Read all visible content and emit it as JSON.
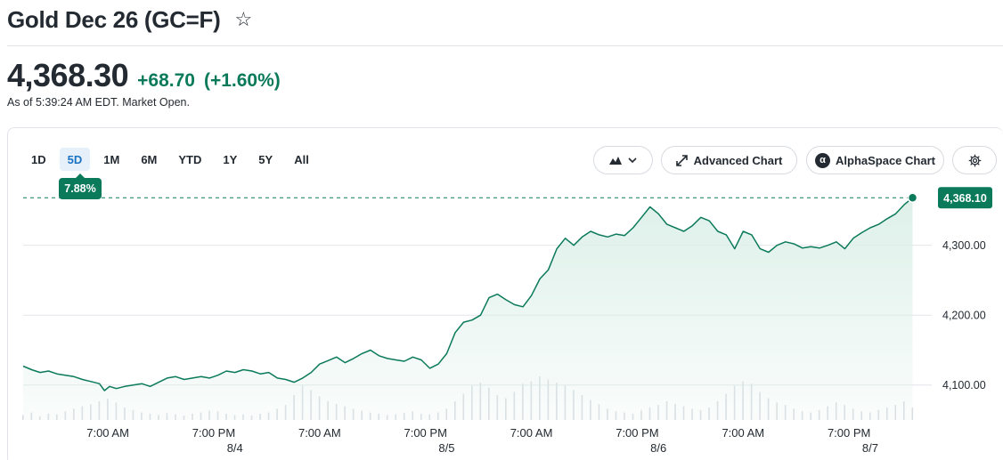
{
  "header": {
    "title": "Gold Dec 26 (GC=F)",
    "star_icon": "star-outline-icon"
  },
  "quote": {
    "price": "4,368.30",
    "change": "+68.70",
    "change_pct": "(+1.60%)",
    "as_of": "As of 5:39:24 AM EDT. Market Open.",
    "positive_color": "#0b7a5a"
  },
  "ranges": {
    "items": [
      "1D",
      "5D",
      "1M",
      "6M",
      "YTD",
      "1Y",
      "5Y",
      "All"
    ],
    "active": "5D",
    "active_change": "7.88%"
  },
  "toolbar": {
    "chart_type_icon": "mountain-chart-icon",
    "advanced_label": "Advanced Chart",
    "alpha_label": "AlphaSpace Chart",
    "settings_icon": "gear-icon"
  },
  "chart_data": {
    "type": "area",
    "last_price_label": "4,368.10",
    "y_ticks": [
      {
        "value": 4300,
        "label": "4,300.00"
      },
      {
        "value": 4200,
        "label": "4,200.00"
      },
      {
        "value": 4100,
        "label": "4,100.00"
      }
    ],
    "ylim": [
      4050,
      4390
    ],
    "xlim": [
      0,
      106
    ],
    "x_ticks": [
      {
        "x": 10,
        "label": "7:00 AM"
      },
      {
        "x": 22.5,
        "label": "7:00 PM"
      },
      {
        "x": 35,
        "label": "7:00 AM"
      },
      {
        "x": 47.5,
        "label": "7:00 PM"
      },
      {
        "x": 60,
        "label": "7:00 AM"
      },
      {
        "x": 72.5,
        "label": "7:00 PM"
      },
      {
        "x": 85,
        "label": "7:00 AM"
      },
      {
        "x": 97.5,
        "label": "7:00 PM"
      }
    ],
    "date_ticks": [
      {
        "x": 25,
        "label": "8/4"
      },
      {
        "x": 50,
        "label": "8/5"
      },
      {
        "x": 75,
        "label": "8/6"
      },
      {
        "x": 100,
        "label": "8/7"
      }
    ],
    "series": [
      {
        "values": [
          [
            0,
            4127
          ],
          [
            1,
            4122
          ],
          [
            2,
            4118
          ],
          [
            3,
            4120
          ],
          [
            4,
            4116
          ],
          [
            5,
            4114
          ],
          [
            6,
            4112
          ],
          [
            7,
            4108
          ],
          [
            8,
            4105
          ],
          [
            9,
            4102
          ],
          [
            9.6,
            4092
          ],
          [
            10.2,
            4098
          ],
          [
            11,
            4095
          ],
          [
            12,
            4098
          ],
          [
            13,
            4100
          ],
          [
            14,
            4102
          ],
          [
            15,
            4098
          ],
          [
            16,
            4104
          ],
          [
            17,
            4110
          ],
          [
            18,
            4112
          ],
          [
            19,
            4108
          ],
          [
            20,
            4110
          ],
          [
            21,
            4112
          ],
          [
            22,
            4110
          ],
          [
            23,
            4114
          ],
          [
            24,
            4120
          ],
          [
            25,
            4118
          ],
          [
            26,
            4122
          ],
          [
            27,
            4120
          ],
          [
            28,
            4116
          ],
          [
            29,
            4118
          ],
          [
            30,
            4110
          ],
          [
            31,
            4108
          ],
          [
            32,
            4104
          ],
          [
            33,
            4110
          ],
          [
            34,
            4118
          ],
          [
            35,
            4130
          ],
          [
            36,
            4135
          ],
          [
            37,
            4140
          ],
          [
            38,
            4132
          ],
          [
            39,
            4138
          ],
          [
            40,
            4145
          ],
          [
            41,
            4150
          ],
          [
            42,
            4142
          ],
          [
            43,
            4138
          ],
          [
            44,
            4136
          ],
          [
            45,
            4134
          ],
          [
            46,
            4140
          ],
          [
            47,
            4136
          ],
          [
            48,
            4124
          ],
          [
            49,
            4130
          ],
          [
            50,
            4145
          ],
          [
            51,
            4175
          ],
          [
            52,
            4190
          ],
          [
            53,
            4193
          ],
          [
            54,
            4200
          ],
          [
            55,
            4225
          ],
          [
            56,
            4230
          ],
          [
            57,
            4222
          ],
          [
            58,
            4215
          ],
          [
            59,
            4212
          ],
          [
            60,
            4228
          ],
          [
            61,
            4252
          ],
          [
            62,
            4265
          ],
          [
            63,
            4295
          ],
          [
            64,
            4310
          ],
          [
            65,
            4300
          ],
          [
            66,
            4312
          ],
          [
            67,
            4320
          ],
          [
            68,
            4315
          ],
          [
            69,
            4312
          ],
          [
            70,
            4316
          ],
          [
            71,
            4314
          ],
          [
            72,
            4325
          ],
          [
            73,
            4340
          ],
          [
            74,
            4355
          ],
          [
            75,
            4345
          ],
          [
            76,
            4330
          ],
          [
            77,
            4325
          ],
          [
            78,
            4320
          ],
          [
            79,
            4328
          ],
          [
            80,
            4340
          ],
          [
            81,
            4335
          ],
          [
            82,
            4320
          ],
          [
            83,
            4315
          ],
          [
            84,
            4295
          ],
          [
            85,
            4320
          ],
          [
            86,
            4315
          ],
          [
            87,
            4295
          ],
          [
            88,
            4290
          ],
          [
            89,
            4300
          ],
          [
            90,
            4305
          ],
          [
            91,
            4302
          ],
          [
            92,
            4296
          ],
          [
            93,
            4298
          ],
          [
            94,
            4296
          ],
          [
            95,
            4300
          ],
          [
            96,
            4305
          ],
          [
            97,
            4295
          ],
          [
            98,
            4310
          ],
          [
            99,
            4318
          ],
          [
            100,
            4325
          ],
          [
            101,
            4330
          ],
          [
            102,
            4338
          ],
          [
            103,
            4345
          ],
          [
            104,
            4358
          ],
          [
            105,
            4368
          ]
        ]
      }
    ],
    "volume_lim": [
      0,
      100
    ],
    "volume": [
      [
        0,
        8
      ],
      [
        1,
        12
      ],
      [
        2,
        6
      ],
      [
        3,
        10
      ],
      [
        4,
        9
      ],
      [
        5,
        14
      ],
      [
        6,
        18
      ],
      [
        7,
        22
      ],
      [
        8,
        25
      ],
      [
        9,
        30
      ],
      [
        10,
        34
      ],
      [
        11,
        28
      ],
      [
        12,
        20
      ],
      [
        13,
        16
      ],
      [
        14,
        12
      ],
      [
        15,
        10
      ],
      [
        16,
        8
      ],
      [
        17,
        11
      ],
      [
        18,
        9
      ],
      [
        19,
        7
      ],
      [
        20,
        10
      ],
      [
        21,
        12
      ],
      [
        22,
        15
      ],
      [
        23,
        14
      ],
      [
        24,
        10
      ],
      [
        25,
        8
      ],
      [
        26,
        9
      ],
      [
        27,
        7
      ],
      [
        28,
        10
      ],
      [
        29,
        12
      ],
      [
        30,
        18
      ],
      [
        31,
        24
      ],
      [
        32,
        40
      ],
      [
        33,
        55
      ],
      [
        34,
        48
      ],
      [
        35,
        38
      ],
      [
        36,
        30
      ],
      [
        37,
        26
      ],
      [
        38,
        22
      ],
      [
        39,
        18
      ],
      [
        40,
        15
      ],
      [
        41,
        12
      ],
      [
        42,
        10
      ],
      [
        43,
        8
      ],
      [
        44,
        9
      ],
      [
        45,
        11
      ],
      [
        46,
        14
      ],
      [
        47,
        10
      ],
      [
        48,
        9
      ],
      [
        49,
        12
      ],
      [
        50,
        18
      ],
      [
        51,
        30
      ],
      [
        52,
        42
      ],
      [
        53,
        55
      ],
      [
        54,
        60
      ],
      [
        55,
        52
      ],
      [
        56,
        40
      ],
      [
        57,
        35
      ],
      [
        58,
        45
      ],
      [
        59,
        58
      ],
      [
        60,
        62
      ],
      [
        61,
        70
      ],
      [
        62,
        65
      ],
      [
        63,
        60
      ],
      [
        64,
        55
      ],
      [
        65,
        48
      ],
      [
        66,
        40
      ],
      [
        67,
        32
      ],
      [
        68,
        25
      ],
      [
        69,
        18
      ],
      [
        70,
        14
      ],
      [
        71,
        12
      ],
      [
        72,
        10
      ],
      [
        73,
        16
      ],
      [
        74,
        20
      ],
      [
        75,
        24
      ],
      [
        76,
        30
      ],
      [
        77,
        26
      ],
      [
        78,
        22
      ],
      [
        79,
        18
      ],
      [
        80,
        16
      ],
      [
        81,
        20
      ],
      [
        82,
        30
      ],
      [
        83,
        42
      ],
      [
        84,
        55
      ],
      [
        85,
        62
      ],
      [
        86,
        58
      ],
      [
        87,
        45
      ],
      [
        88,
        35
      ],
      [
        89,
        28
      ],
      [
        90,
        24
      ],
      [
        91,
        18
      ],
      [
        92,
        14
      ],
      [
        93,
        12
      ],
      [
        94,
        16
      ],
      [
        95,
        22
      ],
      [
        96,
        28
      ],
      [
        97,
        24
      ],
      [
        98,
        18
      ],
      [
        99,
        14
      ],
      [
        100,
        12
      ],
      [
        101,
        16
      ],
      [
        102,
        20
      ],
      [
        103,
        24
      ],
      [
        104,
        30
      ],
      [
        105,
        20
      ]
    ],
    "line_color": "#0b7a5a",
    "fill_color": "#dcefe8",
    "volume_color": "#d9dde2",
    "grid": true
  }
}
